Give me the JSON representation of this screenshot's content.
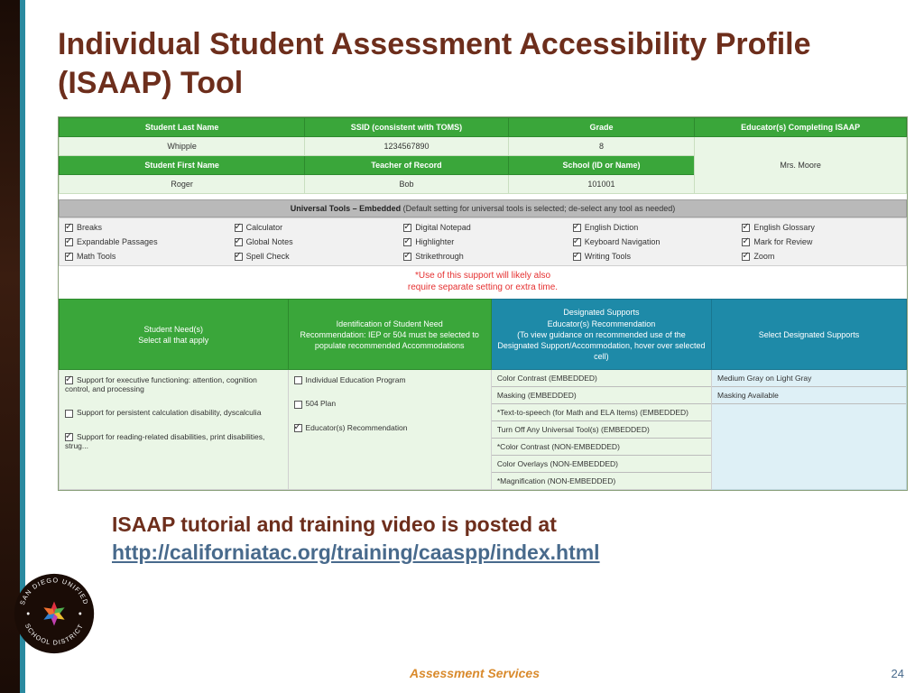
{
  "title": "Individual Student Assessment Accessibility Profile (ISAAP) Tool",
  "info_headers_row1": [
    "Student Last Name",
    "SSID (consistent with TOMS)",
    "Grade",
    "Educator(s) Completing ISAAP"
  ],
  "info_values_row1": [
    "Whipple",
    "1234567890",
    "8",
    "Mrs. Moore"
  ],
  "info_headers_row2": [
    "Student First Name",
    "Teacher of Record",
    "School (ID or Name)"
  ],
  "info_values_row2": [
    "Roger",
    "Bob",
    "101001"
  ],
  "universal_label_bold": "Universal Tools – Embedded",
  "universal_label_rest": " (Default setting for universal tools is selected; de-select any tool as needed)",
  "tools": [
    [
      "Breaks",
      "Calculator",
      "Digital Notepad",
      "English Diction",
      "English Glossary"
    ],
    [
      "Expandable Passages",
      "Global Notes",
      "Highlighter",
      "Keyboard Navigation",
      "Mark for Review"
    ],
    [
      "Math Tools",
      "Spell Check",
      "Strikethrough",
      "Writing Tools",
      "Zoom"
    ]
  ],
  "warn_line1": "*Use of this support will likely also",
  "warn_line2": "require separate setting or extra time.",
  "sec_headers": {
    "needs": "Student Need(s)\nSelect all that apply",
    "ident": "Identification of Student Need\nRecommendation:  IEP or 504 must be selected to populate recommended Accommodations",
    "ds": "Designated Supports\nEducator(s) Recommendation\n(To view guidance on recommended use of the Designated Support/Accommodation, hover over selected cell)",
    "sel": "Select Designated Supports"
  },
  "needs": [
    "Support for executive functioning: attention, cognition control, and processing",
    "Support for persistent calculation disability, dyscalculia",
    "Support for reading-related disabilities, print disabilities, strug..."
  ],
  "ident": [
    "Individual Education Program",
    "504 Plan",
    "Educator(s) Recommendation"
  ],
  "ds_list": [
    "Color Contrast (EMBEDDED)",
    "Masking (EMBEDDED)",
    "*Text-to-speech (for Math and ELA Items) (EMBEDDED)",
    "Turn Off Any Universal Tool(s) (EMBEDDED)",
    "*Color Contrast (NON-EMBEDDED)",
    "Color Overlays (NON-EMBEDDED)",
    "*Magnification (NON-EMBEDDED)"
  ],
  "sel_list": [
    "Medium Gray on Light Gray",
    "Masking Available"
  ],
  "body_lead": "ISAAP tutorial and training video is posted at ",
  "body_link": "http://californiatac.org/training/caaspp/index.html",
  "footer": "Assessment Services",
  "page_num": "24",
  "logo_text_top": "SAN DIEGO UNIFIED",
  "logo_text_bottom": "SCHOOL DISTRICT",
  "colors": {
    "title": "#6d2e1c",
    "green": "#3aa63a",
    "teal": "#1e8aa8",
    "lt_green": "#eaf6e6",
    "lt_teal": "#def0f6",
    "warn": "#e53030",
    "footer": "#d98a2c",
    "link": "#486a8c",
    "strip": "#2a8aa0"
  }
}
